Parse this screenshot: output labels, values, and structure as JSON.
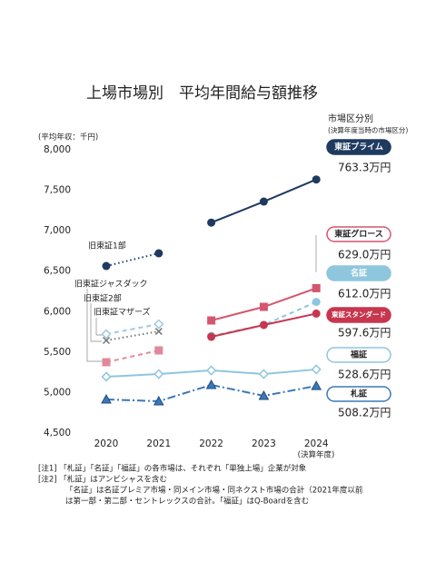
{
  "chart_data": {
    "type": "line",
    "title": "上場市場別　平均年間給与額推移",
    "y_label": "(平均年収：千円)",
    "x_note": "(決算年度)",
    "legend_title": "市場区分別",
    "legend_subtitle": "(決算年度当時の市場区分)",
    "categories": [
      "2020",
      "2021",
      "2022",
      "2023",
      "2024"
    ],
    "ylim": [
      4500,
      8000
    ],
    "yticks": [
      {
        "value": 4500,
        "label": "4,500"
      },
      {
        "value": 5000,
        "label": "5,000"
      },
      {
        "value": 5500,
        "label": "5,500"
      },
      {
        "value": 6000,
        "label": "6,000"
      },
      {
        "value": 6500,
        "label": "6,500"
      },
      {
        "value": 7000,
        "label": "7,000"
      },
      {
        "value": 7500,
        "label": "7,500"
      },
      {
        "value": 8000,
        "label": "8,000"
      }
    ],
    "series": [
      {
        "name": "東証プライム",
        "color": "#1e3a5f",
        "line_style": "solid",
        "marker": "circle",
        "label_box": "filled",
        "values": [
          null,
          null,
          7100,
          7360,
          7633
        ],
        "value_labels": [
          null,
          null,
          null,
          null,
          "763.3万円"
        ]
      },
      {
        "name": "旧東証1部",
        "color": "#1e3a5f",
        "line_style": "dotted",
        "marker": "circle",
        "values": [
          6564,
          6721,
          null,
          null,
          null
        ]
      },
      {
        "name": "東証グロース",
        "color": "#d4566f",
        "line_style": "solid",
        "marker": "square",
        "label_box": "outlined",
        "values": [
          null,
          null,
          5891,
          6059,
          6290
        ],
        "value_labels": [
          null,
          null,
          null,
          null,
          "629.0万円"
        ]
      },
      {
        "name": "旧東証ジャスダック",
        "color": "#e0899a",
        "line_style": "dashed",
        "marker": "square",
        "values": [
          5375,
          5521,
          null,
          null,
          null
        ]
      },
      {
        "name": "名証",
        "color": "#8ec6dd",
        "line_style": "dashed",
        "marker": "circle",
        "label_box": "filled",
        "values": [
          null,
          null,
          5700,
          5835,
          6120
        ],
        "value_labels": [
          null,
          null,
          null,
          null,
          "612.0万円"
        ]
      },
      {
        "name": "東証スタンダード",
        "color": "#c7364e",
        "line_style": "solid",
        "marker": "circle",
        "label_box": "filled",
        "values": [
          null,
          null,
          5689,
          5835,
          5976
        ],
        "value_labels": [
          null,
          null,
          null,
          null,
          "597.6万円"
        ]
      },
      {
        "name": "旧東証2部",
        "color": "#777777",
        "line_style": "dotted",
        "marker": "cross",
        "values": [
          5644,
          5756,
          null,
          null,
          null
        ]
      },
      {
        "name": "旧東証マザーズ",
        "color": "#9ccbe0",
        "line_style": "dashed",
        "marker": "diamond",
        "values": [
          5723,
          5846,
          null,
          null,
          null
        ]
      },
      {
        "name": "福証",
        "color": "#8ec6dd",
        "line_style": "solid",
        "marker": "diamond",
        "label_box": "outlined",
        "values": [
          5196,
          5229,
          5274,
          5229,
          5286
        ],
        "value_labels": [
          null,
          null,
          null,
          null,
          "528.6万円"
        ]
      },
      {
        "name": "札証",
        "color": "#3a78b8",
        "line_style": "dashdot",
        "marker": "triangle",
        "label_box": "outlined",
        "values": [
          4915,
          4893,
          5095,
          4960,
          5082
        ],
        "value_labels": [
          null,
          null,
          null,
          null,
          "508.2万円"
        ]
      }
    ],
    "notes": [
      "[注1]  「札証」「名証」「福証」の各市場は、それぞれ「単独上場」企業が対象",
      "[注2]  「札証」はアンビシャスを含む",
      "「名証」は名証プレミア市場・同メイン市場・同ネクスト市場の合計（2021年度以前",
      "は第一部・第二部・セントレックスの合計。「福証」はQ-Boardを含む"
    ]
  }
}
